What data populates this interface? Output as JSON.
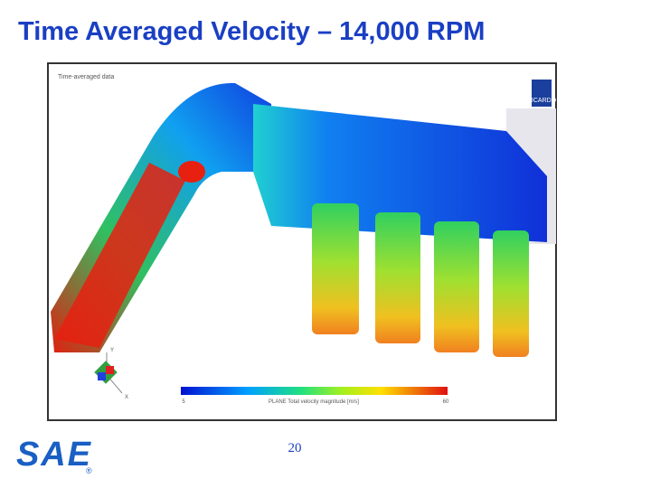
{
  "header": {
    "title": "Time Averaged Velocity – 14,000 RPM"
  },
  "figure": {
    "caption": "Time-averaged data",
    "logo": "RICARDO",
    "colorbar": {
      "min": 5,
      "max": 60,
      "label": "PLANE Total velocity magnitude [m/s]"
    },
    "triad": {
      "y": "Y",
      "x": "X"
    }
  },
  "footer": {
    "page": "20",
    "logo": "SAE",
    "mark": "®"
  }
}
